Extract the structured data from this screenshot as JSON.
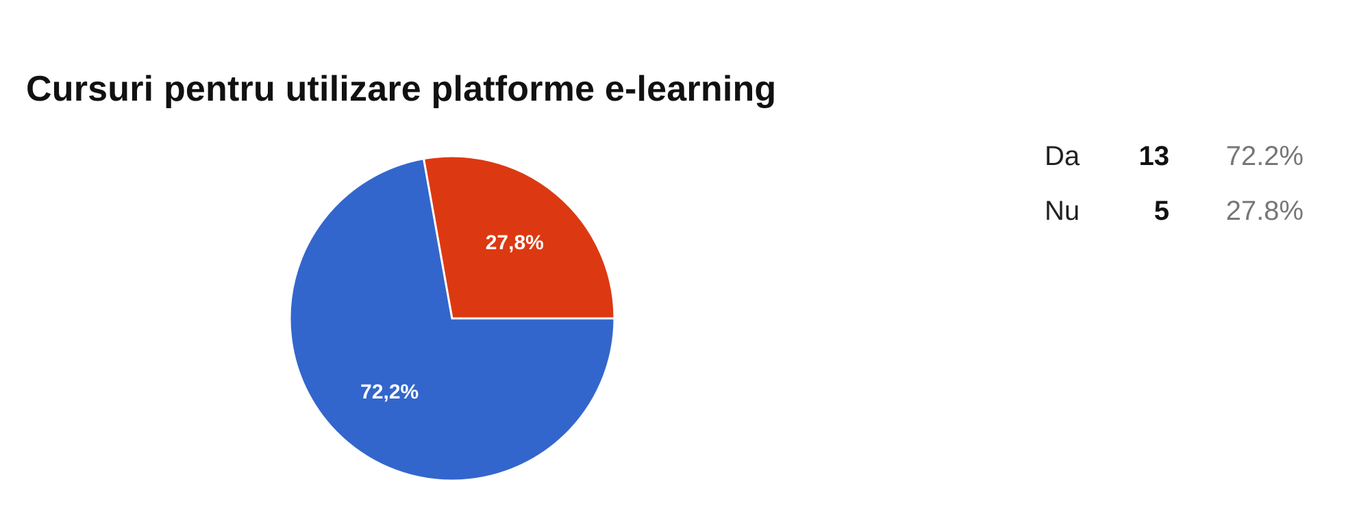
{
  "chart_data": {
    "type": "pie",
    "title": "Cursuri pentru utilizare platforme e-learning",
    "slices": [
      {
        "name": "Da",
        "count": 13,
        "percent": 72.2,
        "label": "72,2%",
        "legend_percent": "72.2%",
        "color": "#3366cc"
      },
      {
        "name": "Nu",
        "count": 5,
        "percent": 27.8,
        "label": "27,8%",
        "legend_percent": "27.8%",
        "color": "#dc3912"
      }
    ],
    "legend_placement": "right"
  }
}
